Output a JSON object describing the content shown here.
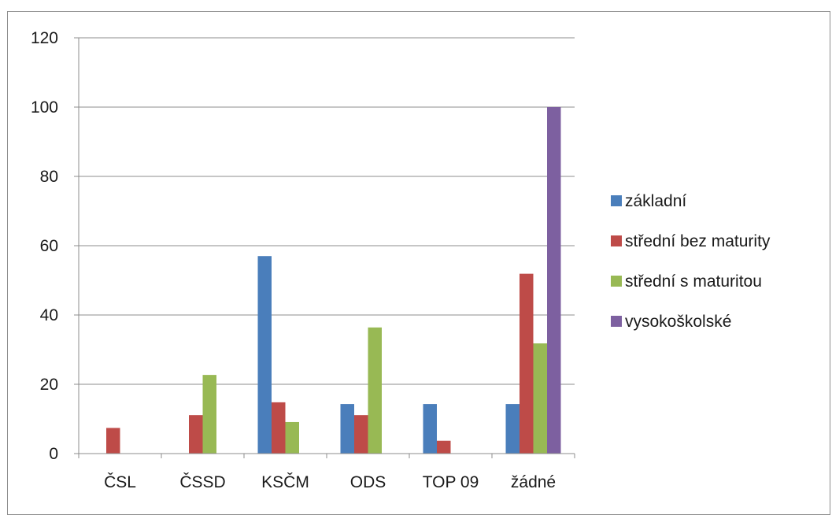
{
  "chart_data": {
    "type": "bar",
    "categories": [
      "ČSL",
      "ČSSD",
      "KSČM",
      "ODS",
      "TOP 09",
      "žádné"
    ],
    "series": [
      {
        "name": "základní",
        "color": "#4a7ebb",
        "values": [
          0,
          0,
          57,
          14.3,
          14.3,
          14.3
        ]
      },
      {
        "name": "střední bez maturity",
        "color": "#be4b48",
        "values": [
          7.4,
          11.1,
          14.8,
          11.1,
          3.7,
          51.9
        ]
      },
      {
        "name": "střední s maturitou",
        "color": "#98b954",
        "values": [
          0,
          22.7,
          9.1,
          36.4,
          0,
          31.8
        ]
      },
      {
        "name": "vysokoškolské",
        "color": "#7d60a0",
        "values": [
          0,
          0,
          0,
          0,
          0,
          100
        ]
      }
    ],
    "ylim": [
      0,
      120
    ],
    "yticks": [
      "0",
      "20",
      "40",
      "60",
      "80",
      "100",
      "120"
    ],
    "grid": true,
    "legend_position": "right"
  }
}
